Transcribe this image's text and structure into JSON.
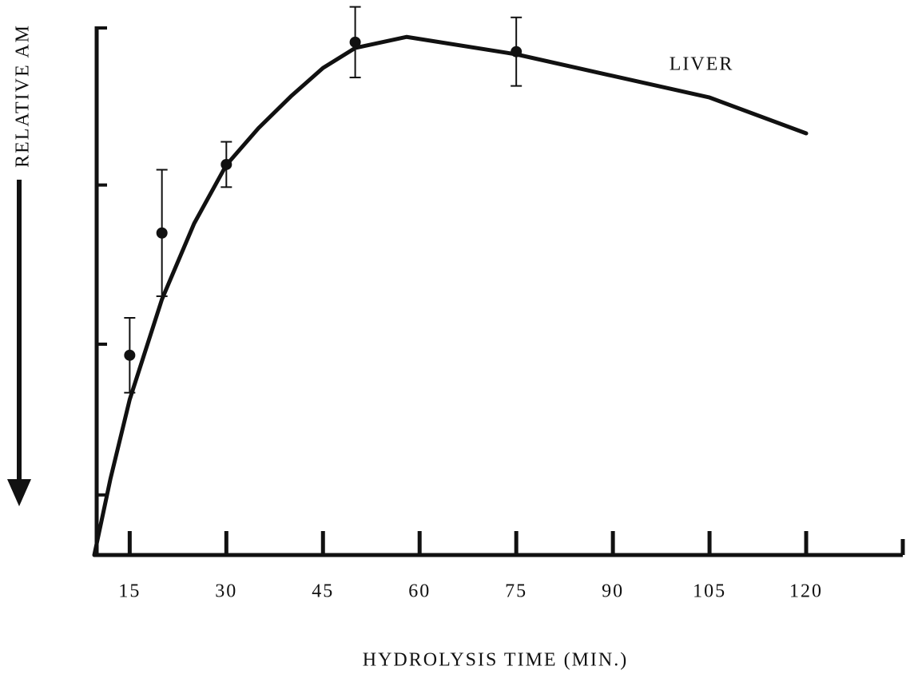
{
  "chart_data": {
    "type": "scatter",
    "xlabel": "HYDROLYSIS TIME (MIN.)",
    "ylabel": "RELATIVE AM",
    "xlim": [
      9.5,
      135
    ],
    "xticks": [
      15,
      30,
      45,
      60,
      75,
      90,
      105,
      120
    ],
    "ylim": [
      0,
      100
    ],
    "yticks": [
      11.4,
      40,
      70.2,
      100
    ],
    "ytick_labels": false,
    "color": "#111111",
    "points": {
      "x": [
        15,
        20,
        30,
        50,
        75
      ],
      "values": [
        37.9,
        61.1,
        74.1,
        97.3,
        95.5
      ],
      "errors": [
        7.1,
        12,
        4.3,
        6.7,
        6.5
      ]
    },
    "curve": {
      "name": "LIVER",
      "x": [
        9.5,
        12,
        15,
        20,
        25,
        30,
        35,
        40,
        45,
        50,
        58,
        75,
        90,
        105,
        120
      ],
      "values": [
        0,
        14.4,
        29.5,
        48.5,
        62.9,
        74,
        81,
        87,
        92.4,
        96.2,
        98.3,
        95,
        90.9,
        86.8,
        80
      ]
    }
  }
}
